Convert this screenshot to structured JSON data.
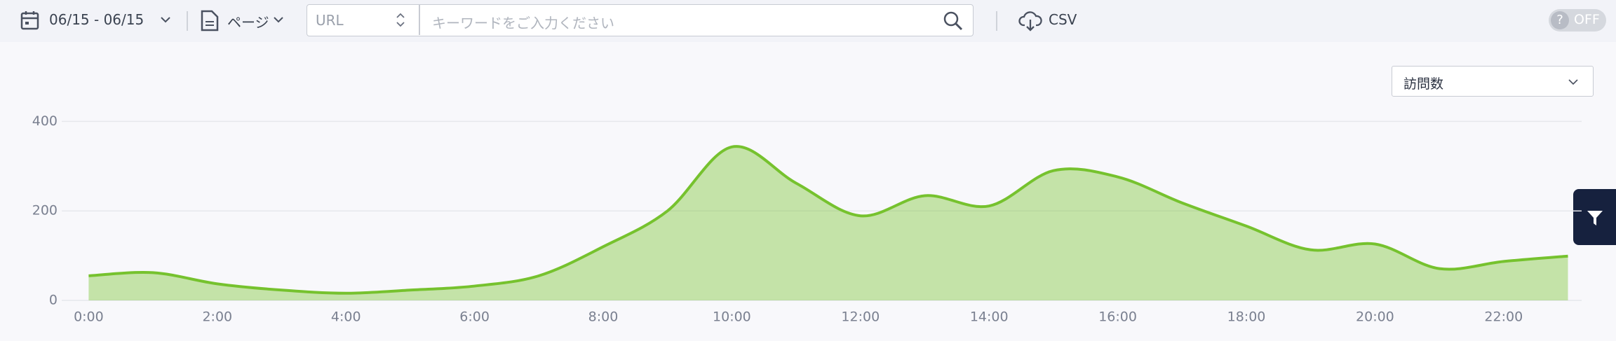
{
  "toolbar": {
    "date_range": "06/15 - 06/15",
    "page_type": "ページ",
    "search_field": "URL",
    "search_placeholder": "キーワードをご入力ください",
    "export": "CSV",
    "toggle": "OFF"
  },
  "controls": {
    "metric": "訪問数"
  },
  "chart_data": {
    "type": "area",
    "categories": [
      "0:00",
      null,
      "2:00",
      null,
      "4:00",
      null,
      "6:00",
      null,
      "8:00",
      null,
      "10:00",
      null,
      "12:00",
      null,
      "14:00",
      null,
      "16:00",
      null,
      "18:00",
      null,
      "20:00",
      null,
      "22:00",
      null
    ],
    "series": [
      {
        "name": "訪問数",
        "color": "#76c22e",
        "values": [
          55,
          62,
          37,
          23,
          16,
          23,
          32,
          55,
          120,
          200,
          343,
          262,
          189,
          234,
          211,
          290,
          276,
          218,
          166,
          113,
          126,
          71,
          87,
          99
        ]
      }
    ],
    "ylim": [
      0,
      400
    ],
    "yticks": [
      0,
      200,
      400
    ],
    "grid": true
  }
}
